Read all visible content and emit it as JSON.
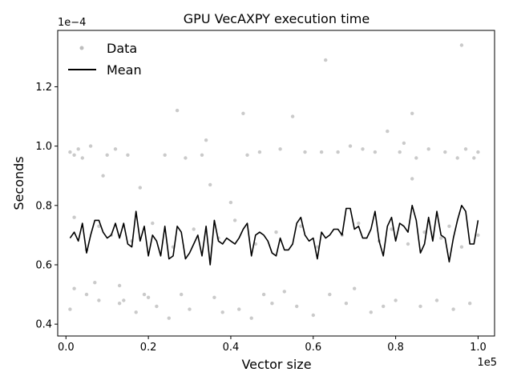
{
  "chart_data": {
    "type": "scatter",
    "title": "GPU VecAXPY execution time",
    "xlabel": "Vector size",
    "ylabel": "Seconds",
    "x_offset_text": "1e5",
    "y_offset_text": "1e−4",
    "xlim": [
      -2000,
      104000
    ],
    "ylim": [
      0.36,
      1.39
    ],
    "x_ticks": [
      0,
      0.2,
      0.4,
      0.6,
      0.8,
      1.0
    ],
    "x_tick_labels": [
      "0.0",
      "0.2",
      "0.4",
      "0.6",
      "0.8",
      "1.0"
    ],
    "y_ticks": [
      0.4,
      0.6,
      0.8,
      1.0,
      1.2
    ],
    "y_tick_labels": [
      "0.4",
      "0.6",
      "0.8",
      "1.0",
      "1.2"
    ],
    "grid": false,
    "legend_position": "top-left",
    "legend": [
      {
        "label": "Data",
        "marker": "dot",
        "color": "#bdbdbd"
      },
      {
        "label": "Mean",
        "marker": "line",
        "color": "#000000"
      }
    ],
    "colors": {
      "data": "#bdbdbd",
      "mean": "#000000"
    },
    "series": [
      {
        "name": "Mean",
        "style": "line",
        "x": [
          1000,
          2000,
          3000,
          4000,
          5000,
          6000,
          7000,
          8000,
          9000,
          10000,
          11000,
          12000,
          13000,
          14000,
          15000,
          16000,
          17000,
          18000,
          19000,
          20000,
          21000,
          22000,
          23000,
          24000,
          25000,
          26000,
          27000,
          28000,
          29000,
          30000,
          31000,
          32000,
          33000,
          34000,
          35000,
          36000,
          37000,
          38000,
          39000,
          40000,
          41000,
          42000,
          43000,
          44000,
          45000,
          46000,
          47000,
          48000,
          49000,
          50000,
          51000,
          52000,
          53000,
          54000,
          55000,
          56000,
          57000,
          58000,
          59000,
          60000,
          61000,
          62000,
          63000,
          64000,
          65000,
          66000,
          67000,
          68000,
          69000,
          70000,
          71000,
          72000,
          73000,
          74000,
          75000,
          76000,
          77000,
          78000,
          79000,
          80000,
          81000,
          82000,
          83000,
          84000,
          85000,
          86000,
          87000,
          88000,
          89000,
          90000,
          91000,
          92000,
          93000,
          94000,
          95000,
          96000,
          97000,
          98000,
          99000,
          100000
        ],
        "y": [
          0.69,
          0.71,
          0.68,
          0.74,
          0.64,
          0.7,
          0.75,
          0.75,
          0.71,
          0.69,
          0.7,
          0.74,
          0.69,
          0.74,
          0.67,
          0.66,
          0.78,
          0.68,
          0.73,
          0.63,
          0.7,
          0.68,
          0.63,
          0.73,
          0.62,
          0.63,
          0.73,
          0.71,
          0.62,
          0.64,
          0.67,
          0.7,
          0.63,
          0.73,
          0.6,
          0.75,
          0.68,
          0.67,
          0.69,
          0.68,
          0.67,
          0.69,
          0.72,
          0.74,
          0.63,
          0.7,
          0.71,
          0.7,
          0.68,
          0.64,
          0.63,
          0.69,
          0.65,
          0.65,
          0.67,
          0.74,
          0.76,
          0.7,
          0.68,
          0.69,
          0.62,
          0.71,
          0.69,
          0.7,
          0.72,
          0.72,
          0.7,
          0.79,
          0.79,
          0.72,
          0.73,
          0.69,
          0.69,
          0.72,
          0.78,
          0.68,
          0.63,
          0.73,
          0.76,
          0.68,
          0.74,
          0.73,
          0.71,
          0.8,
          0.75,
          0.64,
          0.67,
          0.76,
          0.68,
          0.78,
          0.7,
          0.69,
          0.61,
          0.69,
          0.75,
          0.8,
          0.78,
          0.67,
          0.67,
          0.75
        ]
      },
      {
        "name": "Data",
        "style": "scatter",
        "x": [
          1000,
          1000,
          2000,
          2000,
          3000,
          4000,
          5000,
          6000,
          7000,
          8000,
          9000,
          10000,
          12000,
          13000,
          13000,
          14000,
          15000,
          17000,
          18000,
          19000,
          20000,
          22000,
          24000,
          25000,
          27000,
          28000,
          29000,
          30000,
          33000,
          34000,
          35000,
          36000,
          38000,
          40000,
          42000,
          43000,
          44000,
          45000,
          47000,
          48000,
          50000,
          52000,
          53000,
          55000,
          56000,
          58000,
          60000,
          62000,
          63000,
          64000,
          66000,
          68000,
          69000,
          70000,
          72000,
          74000,
          75000,
          77000,
          78000,
          80000,
          81000,
          82000,
          84000,
          84000,
          85000,
          86000,
          88000,
          90000,
          92000,
          94000,
          95000,
          96000,
          97000,
          98000,
          99000,
          100000,
          2000,
          5000,
          8000,
          11000,
          16000,
          21000,
          26000,
          31000,
          37000,
          41000,
          46000,
          51000,
          57000,
          61000,
          67000,
          71000,
          76000,
          79000,
          83000,
          87000,
          91000,
          93000,
          96000,
          100000
        ],
        "y": [
          0.98,
          0.45,
          0.97,
          0.52,
          0.99,
          0.96,
          0.5,
          1.0,
          0.54,
          0.48,
          0.9,
          0.97,
          0.99,
          0.53,
          0.47,
          0.48,
          0.97,
          0.44,
          0.86,
          0.5,
          0.49,
          0.46,
          0.97,
          0.42,
          1.12,
          0.5,
          0.96,
          0.45,
          0.97,
          1.02,
          0.87,
          0.49,
          0.44,
          0.81,
          0.45,
          1.11,
          0.97,
          0.42,
          0.98,
          0.5,
          0.47,
          0.99,
          0.51,
          1.1,
          0.46,
          0.98,
          0.43,
          0.98,
          1.29,
          0.5,
          0.98,
          0.47,
          1.0,
          0.52,
          0.99,
          0.44,
          0.98,
          0.46,
          1.05,
          0.48,
          0.98,
          1.01,
          0.89,
          1.11,
          0.96,
          0.46,
          0.99,
          0.48,
          0.98,
          0.45,
          0.96,
          1.34,
          0.99,
          0.47,
          0.96,
          0.98,
          0.76,
          0.65,
          0.73,
          0.7,
          0.68,
          0.74,
          0.66,
          0.72,
          0.69,
          0.75,
          0.67,
          0.71,
          0.73,
          0.66,
          0.7,
          0.74,
          0.68,
          0.72,
          0.67,
          0.71,
          0.69,
          0.73,
          0.66,
          0.7
        ]
      }
    ]
  }
}
